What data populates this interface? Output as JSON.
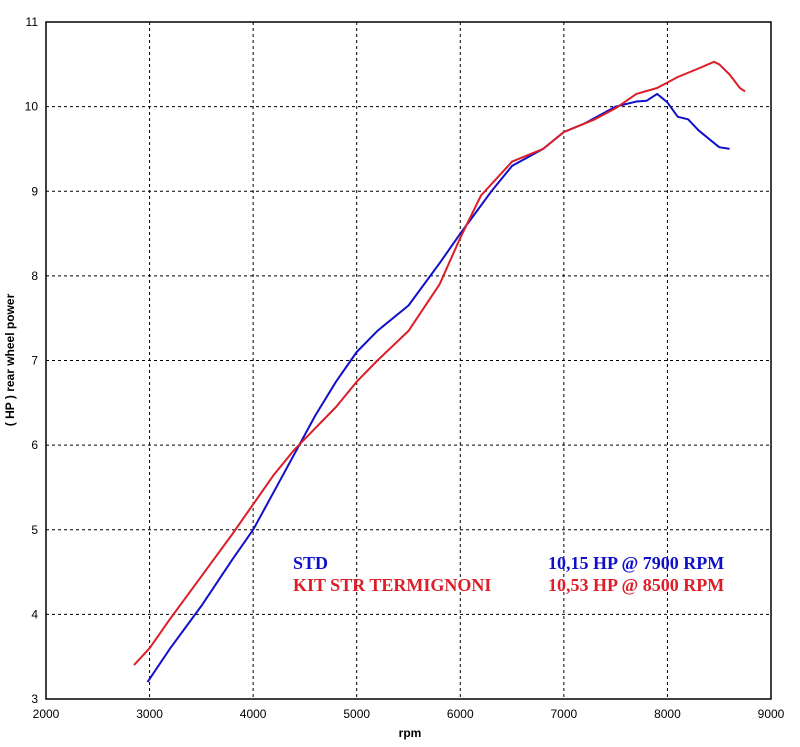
{
  "chart_data": {
    "type": "line",
    "title": "",
    "xlabel": "rpm",
    "ylabel": "( HP )  rear  wheel  power",
    "xlim": [
      2000,
      9000
    ],
    "ylim": [
      3,
      11
    ],
    "x_ticks": [
      "2000",
      "3000",
      "4000",
      "5000",
      "6000",
      "7000",
      "8000",
      "9000"
    ],
    "y_ticks": [
      "3",
      "4",
      "5",
      "6",
      "7",
      "8",
      "9",
      "10",
      "11"
    ],
    "grid": true,
    "series": [
      {
        "name": "STD",
        "peak_label": "10,15 HP @ 7900 RPM",
        "color": "#1010c8",
        "x": [
          2980,
          3200,
          3500,
          3800,
          4000,
          4200,
          4400,
          4600,
          4800,
          5000,
          5200,
          5500,
          5800,
          6000,
          6300,
          6500,
          6800,
          7000,
          7200,
          7500,
          7700,
          7800,
          7900,
          8000,
          8100,
          8200,
          8300,
          8400,
          8500,
          8600
        ],
        "y": [
          3.2,
          3.6,
          4.1,
          4.65,
          5.0,
          5.45,
          5.9,
          6.35,
          6.75,
          7.1,
          7.35,
          7.65,
          8.15,
          8.5,
          9.0,
          9.3,
          9.5,
          9.7,
          9.8,
          10.0,
          10.06,
          10.07,
          10.15,
          10.05,
          9.88,
          9.85,
          9.72,
          9.62,
          9.52,
          9.5
        ]
      },
      {
        "name": "KIT STR TERMIGNONI",
        "peak_label": "10,53 HP @ 8500 RPM",
        "color": "#dc1e28",
        "x": [
          2850,
          3000,
          3200,
          3500,
          3800,
          4000,
          4200,
          4400,
          4600,
          4800,
          5000,
          5200,
          5500,
          5800,
          6000,
          6200,
          6500,
          6800,
          7000,
          7300,
          7500,
          7700,
          7900,
          8100,
          8300,
          8450,
          8500,
          8600,
          8700,
          8750
        ],
        "y": [
          3.4,
          3.6,
          3.95,
          4.45,
          4.95,
          5.3,
          5.65,
          5.95,
          6.2,
          6.45,
          6.75,
          7.0,
          7.35,
          7.9,
          8.45,
          8.95,
          9.35,
          9.5,
          9.7,
          9.85,
          9.98,
          10.15,
          10.22,
          10.35,
          10.45,
          10.53,
          10.5,
          10.38,
          10.22,
          10.18
        ]
      }
    ]
  }
}
